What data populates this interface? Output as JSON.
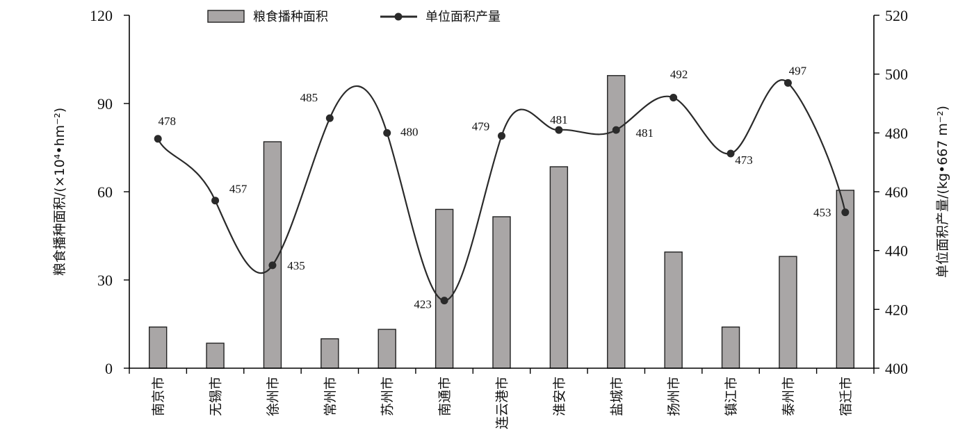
{
  "chart_data": {
    "type": "bar+line",
    "categories": [
      "南京市",
      "无锡市",
      "徐州市",
      "常州市",
      "苏州市",
      "南通市",
      "连云港市",
      "淮安市",
      "盐城市",
      "扬州市",
      "镇江市",
      "泰州市",
      "宿迁市"
    ],
    "series": [
      {
        "name": "粮食播种面积",
        "type": "bar",
        "axis": "left",
        "values": [
          14,
          8.5,
          77,
          10,
          13.2,
          54,
          51.5,
          68.5,
          99.5,
          39.5,
          14,
          38,
          60.5
        ]
      },
      {
        "name": "单位面积产量",
        "type": "line",
        "axis": "right",
        "values": [
          478,
          457,
          435,
          485,
          480,
          423,
          479,
          481,
          481,
          492,
          473,
          497,
          453
        ],
        "labels": [
          "478",
          "457",
          "435",
          "485",
          "480",
          "423",
          "479",
          "481",
          "481",
          "492",
          "473",
          "497",
          "453"
        ]
      }
    ],
    "y_left": {
      "label": "粮食播种面积/(×10⁴•hm⁻²)",
      "ylim": [
        0,
        120
      ],
      "ticks": [
        0,
        30,
        60,
        90,
        120
      ],
      "tick_labels": [
        "0",
        "30",
        "60",
        "90",
        "120"
      ]
    },
    "y_right": {
      "label": "单位面积产量/(kg•667 m⁻²)",
      "ylim": [
        400,
        520
      ],
      "ticks": [
        400,
        420,
        440,
        460,
        480,
        500,
        520
      ],
      "tick_labels": [
        "400",
        "420",
        "440",
        "460",
        "480",
        "500",
        "520"
      ]
    },
    "legend": {
      "placement": "top",
      "items": [
        {
          "label": "粮食播种面积",
          "marker": "bar"
        },
        {
          "label": "单位面积产量",
          "marker": "line-point"
        }
      ]
    },
    "grid": false,
    "colors": {
      "bar_fill": "#a9a6a6",
      "bar_stroke": "#222222",
      "line": "#2a2a2a"
    }
  }
}
